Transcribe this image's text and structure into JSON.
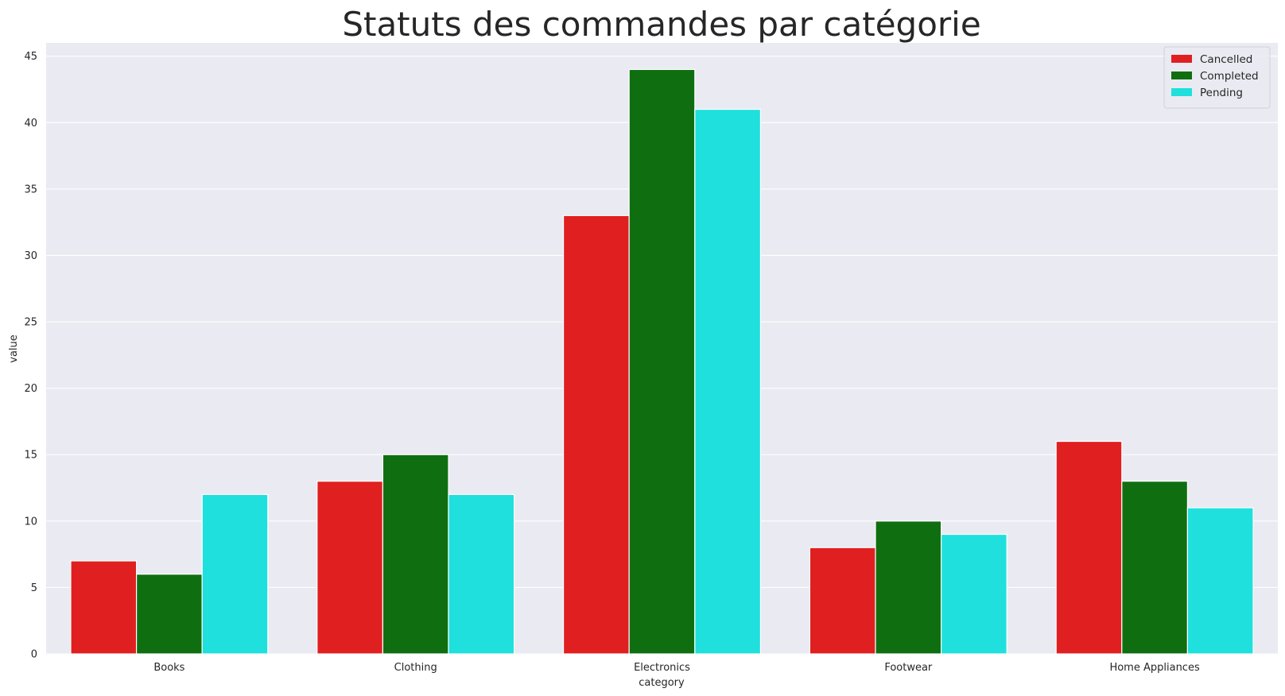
{
  "chart_data": {
    "type": "bar",
    "title": "Statuts des commandes par catégorie",
    "xlabel": "category",
    "ylabel": "value",
    "categories": [
      "Books",
      "Clothing",
      "Electronics",
      "Footwear",
      "Home Appliances"
    ],
    "series": [
      {
        "name": "Cancelled",
        "color": "#e01f20",
        "values": [
          7,
          13,
          33,
          8,
          16
        ]
      },
      {
        "name": "Completed",
        "color": "#0f6f10",
        "values": [
          6,
          15,
          44,
          10,
          13
        ]
      },
      {
        "name": "Pending",
        "color": "#1fe0dd",
        "values": [
          12,
          12,
          41,
          9,
          11
        ]
      }
    ],
    "ylim": [
      0,
      46
    ],
    "yticks": [
      0,
      5,
      10,
      15,
      20,
      25,
      30,
      35,
      40,
      45
    ],
    "grid": true,
    "legend_position": "top-right",
    "background_color": "#eaeaf2",
    "grid_color": "#ffffff"
  }
}
